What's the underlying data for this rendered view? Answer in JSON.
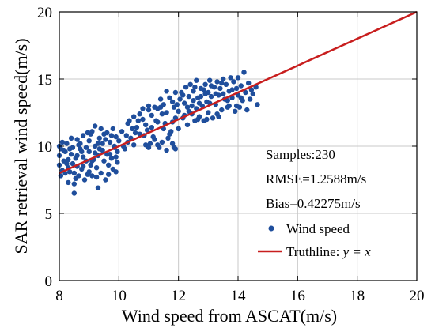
{
  "chart_data": {
    "type": "scatter",
    "xlabel": "Wind speed from ASCAT(m/s)",
    "ylabel": "SAR retrieval wind speed(m/s)",
    "xlim": [
      8,
      20
    ],
    "ylim": [
      0,
      20
    ],
    "x_ticks": [
      "8",
      "10",
      "12",
      "14",
      "16",
      "18",
      "20"
    ],
    "y_ticks": [
      "0",
      "5",
      "10",
      "15",
      "20"
    ],
    "grid": true,
    "legend_position": "bottom-right",
    "annotations": {
      "samples": "Samples:230",
      "rmse": "RMSE=1.2588m/s",
      "bias": "Bias=0.42275m/s"
    },
    "legend": {
      "scatter_label": "Wind speed",
      "line_label_prefix": "Truthline: ",
      "line_label_math": "y = x"
    },
    "colors": {
      "points": "#1f4e9c",
      "line": "#c81e1e",
      "grid": "#c8c8c8"
    },
    "series": [
      {
        "name": "Wind speed",
        "type": "scatter",
        "points": [
          [
            8.0,
            8.6
          ],
          [
            8.0,
            9.3
          ],
          [
            8.0,
            10.0
          ],
          [
            8.05,
            7.8
          ],
          [
            8.05,
            9.8
          ],
          [
            8.1,
            10.3
          ],
          [
            8.1,
            8.2
          ],
          [
            8.15,
            8.9
          ],
          [
            8.2,
            8.0
          ],
          [
            8.2,
            9.6
          ],
          [
            8.25,
            10.2
          ],
          [
            8.3,
            7.3
          ],
          [
            8.3,
            8.4
          ],
          [
            8.3,
            9.0
          ],
          [
            8.35,
            8.1
          ],
          [
            8.4,
            9.4
          ],
          [
            8.4,
            10.6
          ],
          [
            8.45,
            8.7
          ],
          [
            8.5,
            6.5
          ],
          [
            8.5,
            7.2
          ],
          [
            8.5,
            8.0
          ],
          [
            8.55,
            9.1
          ],
          [
            8.6,
            10.5
          ],
          [
            8.6,
            8.5
          ],
          [
            8.65,
            7.8
          ],
          [
            8.7,
            9.8
          ],
          [
            8.7,
            10.2
          ],
          [
            8.75,
            8.3
          ],
          [
            8.8,
            9.2
          ],
          [
            8.8,
            10.8
          ],
          [
            8.85,
            7.5
          ],
          [
            8.9,
            9.9
          ],
          [
            8.9,
            8.9
          ],
          [
            8.95,
            11.0
          ],
          [
            9.0,
            8.1
          ],
          [
            9.0,
            9.6
          ],
          [
            9.0,
            10.4
          ],
          [
            9.05,
            8.6
          ],
          [
            9.1,
            11.1
          ],
          [
            9.1,
            7.8
          ],
          [
            9.15,
            9.0
          ],
          [
            9.2,
            10.0
          ],
          [
            9.2,
            11.5
          ],
          [
            9.25,
            8.4
          ],
          [
            9.3,
            6.9
          ],
          [
            9.3,
            9.3
          ],
          [
            9.35,
            10.6
          ],
          [
            9.4,
            8.0
          ],
          [
            9.4,
            11.3
          ],
          [
            9.45,
            9.7
          ],
          [
            9.5,
            8.9
          ],
          [
            9.5,
            10.9
          ],
          [
            9.55,
            7.5
          ],
          [
            9.6,
            9.4
          ],
          [
            9.6,
            11.0
          ],
          [
            9.65,
            8.6
          ],
          [
            9.7,
            10.3
          ],
          [
            9.75,
            9.1
          ],
          [
            9.8,
            11.3
          ],
          [
            9.8,
            8.3
          ],
          [
            9.85,
            9.9
          ],
          [
            9.9,
            10.7
          ],
          [
            9.95,
            8.8
          ],
          [
            9.95,
            9.6
          ],
          [
            9.2,
            9.5
          ],
          [
            9.1,
            8.9
          ],
          [
            8.8,
            8.5
          ],
          [
            8.6,
            9.3
          ],
          [
            9.35,
            9.8
          ],
          [
            9.45,
            10.2
          ],
          [
            9.7,
            9.4
          ],
          [
            9.85,
            10.0
          ],
          [
            10.0,
            10.4
          ],
          [
            10.1,
            11.1
          ],
          [
            10.2,
            9.8
          ],
          [
            10.3,
            11.7
          ],
          [
            10.4,
            10.6
          ],
          [
            10.5,
            10.1
          ],
          [
            10.5,
            12.2
          ],
          [
            10.6,
            11.4
          ],
          [
            10.7,
            10.9
          ],
          [
            10.8,
            12.0
          ],
          [
            10.9,
            11.6
          ],
          [
            11.0,
            12.7
          ],
          [
            11.0,
            9.9
          ],
          [
            11.1,
            12.3
          ],
          [
            11.2,
            10.5
          ],
          [
            11.3,
            12.8
          ],
          [
            11.3,
            10.1
          ],
          [
            11.4,
            12.9
          ],
          [
            11.5,
            11.3
          ],
          [
            11.6,
            12.5
          ],
          [
            11.6,
            9.7
          ],
          [
            11.7,
            10.9
          ],
          [
            11.8,
            10.2
          ],
          [
            11.8,
            11.8
          ],
          [
            11.9,
            12.1
          ],
          [
            11.9,
            9.8
          ],
          [
            11.15,
            10.7
          ],
          [
            11.45,
            10.3
          ],
          [
            11.75,
            11.1
          ],
          [
            11.55,
            11.7
          ],
          [
            10.95,
            11.2
          ],
          [
            11.25,
            11.9
          ],
          [
            11.65,
            10.6
          ],
          [
            11.85,
            9.9
          ],
          [
            11.35,
            9.9
          ],
          [
            11.05,
            10.2
          ],
          [
            10.85,
            10.8
          ],
          [
            10.65,
            11.9
          ],
          [
            10.45,
            11.3
          ],
          [
            10.25,
            10.8
          ],
          [
            11.5,
            13.1
          ],
          [
            11.7,
            13.6
          ],
          [
            11.9,
            14.0
          ],
          [
            11.8,
            13.3
          ],
          [
            11.4,
            13.5
          ],
          [
            11.6,
            14.1
          ],
          [
            11.2,
            12.9
          ],
          [
            11.95,
            13.1
          ],
          [
            12.0,
            12.6
          ],
          [
            12.05,
            13.5
          ],
          [
            12.1,
            14.0
          ],
          [
            12.15,
            12.1
          ],
          [
            12.2,
            13.2
          ],
          [
            12.25,
            14.4
          ],
          [
            12.3,
            11.6
          ],
          [
            12.3,
            12.9
          ],
          [
            12.35,
            13.7
          ],
          [
            12.4,
            14.6
          ],
          [
            12.45,
            12.4
          ],
          [
            12.5,
            13.4
          ],
          [
            12.5,
            14.1
          ],
          [
            12.55,
            11.9
          ],
          [
            12.6,
            12.8
          ],
          [
            12.6,
            14.9
          ],
          [
            12.65,
            13.6
          ],
          [
            12.7,
            12.2
          ],
          [
            12.75,
            14.3
          ],
          [
            12.8,
            13.0
          ],
          [
            12.85,
            11.9
          ],
          [
            12.9,
            14.6
          ],
          [
            12.95,
            13.3
          ],
          [
            13.0,
            12.5
          ],
          [
            13.0,
            14.0
          ],
          [
            13.05,
            14.9
          ],
          [
            13.1,
            13.7
          ],
          [
            13.15,
            12.1
          ],
          [
            13.2,
            14.4
          ],
          [
            13.25,
            13.1
          ],
          [
            13.3,
            12.4
          ],
          [
            13.3,
            14.8
          ],
          [
            13.35,
            13.8
          ],
          [
            13.4,
            14.3
          ],
          [
            13.45,
            12.7
          ],
          [
            13.5,
            15.0
          ],
          [
            13.55,
            13.5
          ],
          [
            13.6,
            14.6
          ],
          [
            13.65,
            12.9
          ],
          [
            13.7,
            14.1
          ],
          [
            13.75,
            15.1
          ],
          [
            13.8,
            13.6
          ],
          [
            13.85,
            14.8
          ],
          [
            13.9,
            12.6
          ],
          [
            13.95,
            14.3
          ],
          [
            14.0,
            13.8
          ],
          [
            14.0,
            15.1
          ],
          [
            14.05,
            12.9
          ],
          [
            14.1,
            14.5
          ],
          [
            14.15,
            13.4
          ],
          [
            14.2,
            15.5
          ],
          [
            14.25,
            14.0
          ],
          [
            14.3,
            12.7
          ],
          [
            14.35,
            14.7
          ],
          [
            14.4,
            13.5
          ],
          [
            14.45,
            14.2
          ],
          [
            14.5,
            13.9
          ],
          [
            14.6,
            14.4
          ],
          [
            14.65,
            13.1
          ],
          [
            12.15,
            13.8
          ],
          [
            12.45,
            13.0
          ],
          [
            12.75,
            13.7
          ],
          [
            13.05,
            13.2
          ],
          [
            13.35,
            12.2
          ],
          [
            13.65,
            13.4
          ],
          [
            13.95,
            13.0
          ],
          [
            12.55,
            14.4
          ],
          [
            12.85,
            14.2
          ],
          [
            13.25,
            13.9
          ],
          [
            12.35,
            12.6
          ],
          [
            12.65,
            12.0
          ],
          [
            12.95,
            12.0
          ],
          [
            11.3,
            11.8
          ],
          [
            11.1,
            11.4
          ],
          [
            10.7,
            12.4
          ],
          [
            10.3,
            10.3
          ],
          [
            10.55,
            11.0
          ],
          [
            10.15,
            10.0
          ],
          [
            10.9,
            10.1
          ],
          [
            11.45,
            12.4
          ],
          [
            8.15,
            9.7
          ],
          [
            8.45,
            9.9
          ],
          [
            8.75,
            9.6
          ],
          [
            9.05,
            10.9
          ],
          [
            9.3,
            10.2
          ],
          [
            9.55,
            10.5
          ],
          [
            9.75,
            10.8
          ],
          [
            9.9,
            9.2
          ],
          [
            8.25,
            8.7
          ],
          [
            8.55,
            7.6
          ],
          [
            8.95,
            7.9
          ],
          [
            9.25,
            7.7
          ],
          [
            9.65,
            7.9
          ],
          [
            9.9,
            8.1
          ],
          [
            8.35,
            9.8
          ],
          [
            8.65,
            10.1
          ],
          [
            13.1,
            14.5
          ],
          [
            13.45,
            14.7
          ],
          [
            13.8,
            14.2
          ],
          [
            12.2,
            12.3
          ],
          [
            12.0,
            11.3
          ],
          [
            13.5,
            13.9
          ],
          [
            14.1,
            13.6
          ],
          [
            12.7,
            13.2
          ],
          [
            11.0,
            13.0
          ],
          [
            10.8,
            12.8
          ],
          [
            12.9,
            13.9
          ],
          [
            13.7,
            13.0
          ],
          [
            10.35,
            11.9
          ],
          [
            11.85,
            12.9
          ]
        ]
      },
      {
        "name": "Truthline",
        "type": "line",
        "points": [
          [
            8,
            8
          ],
          [
            20,
            20
          ]
        ]
      }
    ]
  }
}
